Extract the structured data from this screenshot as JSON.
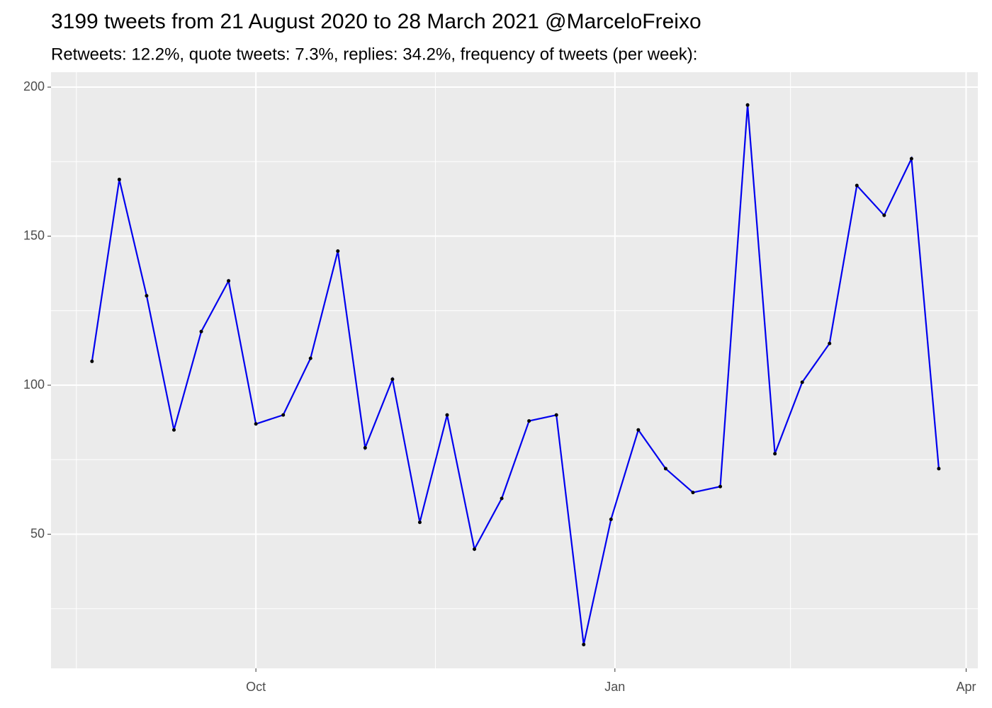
{
  "chart_data": {
    "type": "line",
    "title": "3199 tweets from 21 August 2020 to 28 March 2021 @MarceloFreixo",
    "subtitle": "Retweets: 12.2%, quote tweets: 7.3%, replies: 34.2%, frequency of tweets (per week):",
    "x": [
      -134,
      -127,
      -120,
      -113,
      -106,
      -99,
      -92,
      -85,
      -78,
      -71,
      -64,
      -57,
      -50,
      -43,
      -36,
      -29,
      -22,
      -15,
      -8,
      -1,
      6,
      13,
      20,
      27,
      34,
      41,
      48,
      55,
      62,
      69,
      76,
      83
    ],
    "series": [
      {
        "name": "tweets",
        "color": "#0000ee",
        "values": [
          108,
          169,
          130,
          85,
          118,
          135,
          87,
          90,
          109,
          145,
          79,
          102,
          54,
          90,
          45,
          62,
          88,
          90,
          13,
          55,
          85,
          72,
          64,
          66,
          194,
          77,
          101,
          114,
          167,
          157,
          176,
          72
        ]
      }
    ],
    "xlim": [
      -144.5,
      93
    ],
    "xticks": [
      {
        "value": -92,
        "label": "Oct"
      },
      {
        "value": 0,
        "label": "Jan"
      },
      {
        "value": 90,
        "label": "Apr"
      }
    ],
    "ylim": [
      5,
      205
    ],
    "yticks": [
      50,
      100,
      150,
      200
    ],
    "grid": true
  }
}
